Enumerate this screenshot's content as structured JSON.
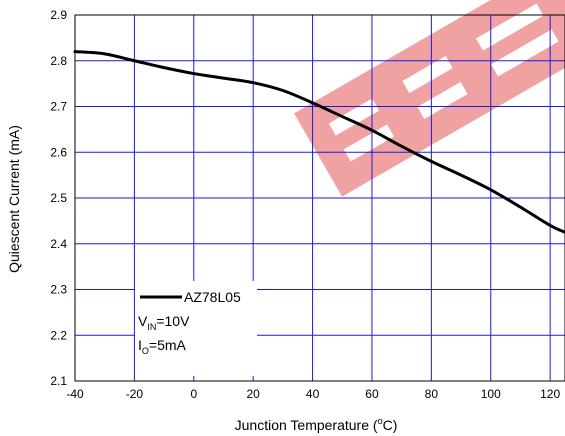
{
  "chart_data": {
    "type": "line",
    "xlabel": "Junction Temperature (°C)",
    "xlabel_main": "Junction Temperature (",
    "xlabel_sup": "o",
    "xlabel_unit": "C)",
    "ylabel": "Quiescent Current (mA)",
    "xlim": [
      -40,
      125
    ],
    "ylim": [
      2.1,
      2.9
    ],
    "x_ticks": [
      -40,
      -20,
      0,
      20,
      40,
      60,
      80,
      100,
      120
    ],
    "y_ticks": [
      2.1,
      2.2,
      2.3,
      2.4,
      2.5,
      2.6,
      2.7,
      2.8,
      2.9
    ],
    "x_tick_labels": [
      "-40",
      "-20",
      "0",
      "20",
      "40",
      "60",
      "80",
      "100",
      "120"
    ],
    "y_tick_labels": [
      "2.1",
      "2.2",
      "2.3",
      "2.4",
      "2.5",
      "2.6",
      "2.7",
      "2.8",
      "2.9"
    ],
    "grid": true,
    "grid_color": "#1a1adb",
    "line_color": "#000000",
    "watermark_color": "#e8686a",
    "legend_position": "bottom-left",
    "series": [
      {
        "name": "AZ78L05",
        "x": [
          -40,
          -30,
          -20,
          -10,
          0,
          10,
          20,
          30,
          40,
          50,
          60,
          70,
          80,
          90,
          100,
          110,
          120,
          125
        ],
        "y": [
          2.82,
          2.815,
          2.8,
          2.785,
          2.772,
          2.762,
          2.752,
          2.735,
          2.708,
          2.678,
          2.648,
          2.613,
          2.58,
          2.55,
          2.518,
          2.48,
          2.44,
          2.425
        ]
      }
    ],
    "legend": {
      "series_label": "AZ78L05",
      "vin_symbol": "V",
      "vin_sub": "IN",
      "vin_value": "=10V",
      "io_symbol": "I",
      "io_sub": "O",
      "io_value": "=5mA"
    }
  }
}
